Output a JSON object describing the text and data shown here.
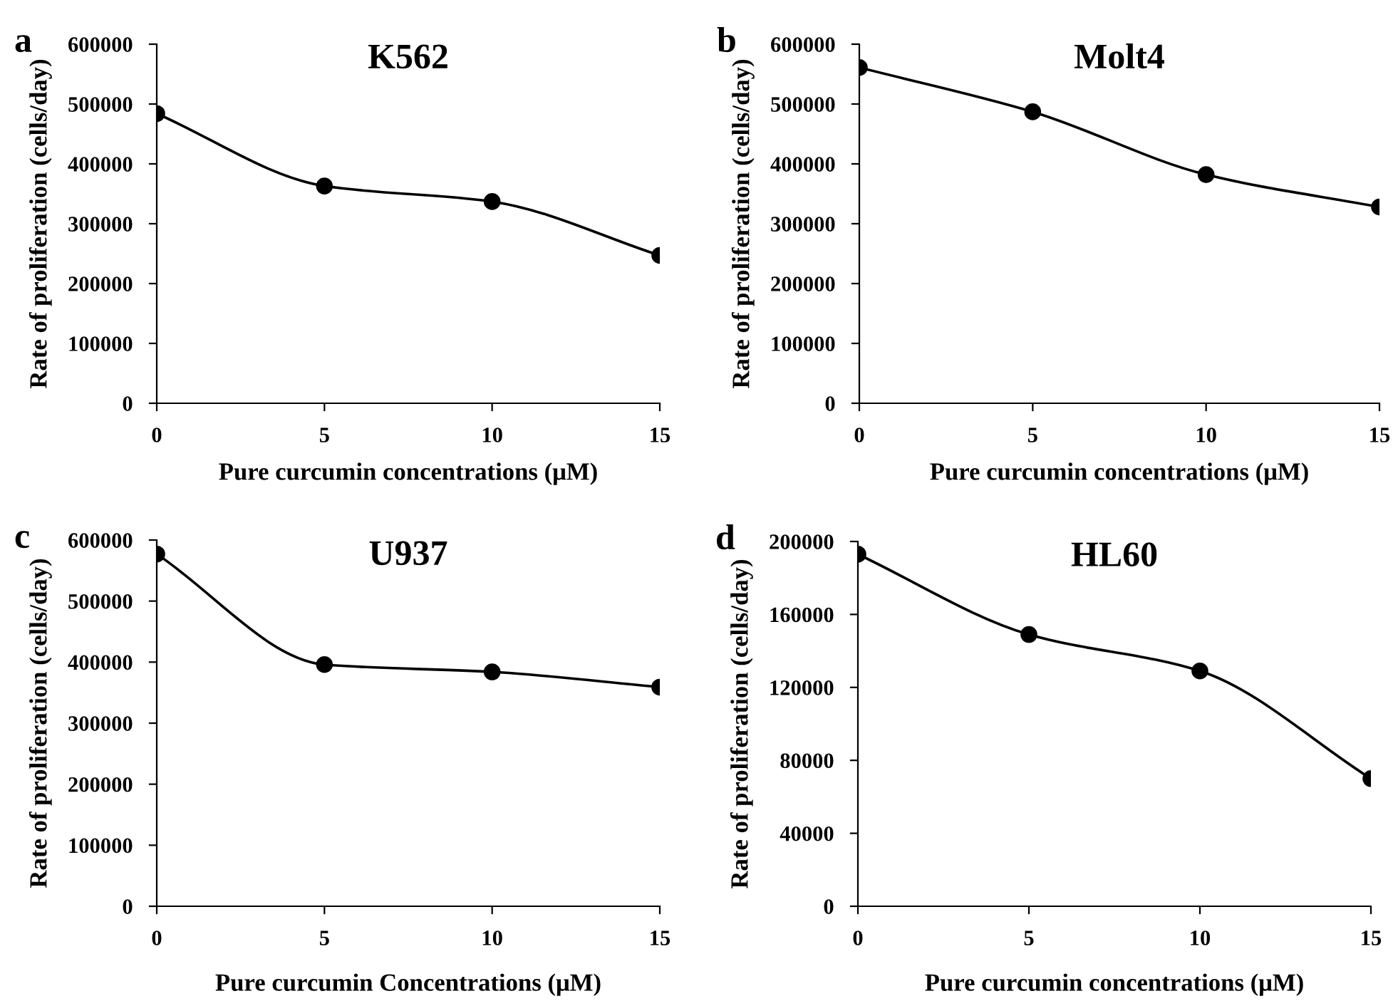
{
  "chart_data": [
    {
      "type": "line",
      "title": "K562",
      "xlabel": "Pure curcumin concentrations (μM)",
      "ylabel": "Rate of proliferation (cells/day)",
      "annotations": [
        "a"
      ],
      "x": [
        0,
        5,
        10,
        15
      ],
      "xlim": [
        0,
        15
      ],
      "xticks": [
        0,
        5,
        10,
        15
      ],
      "ylim": [
        0,
        600000
      ],
      "yticks": [
        0,
        100000,
        200000,
        300000,
        400000,
        500000,
        600000
      ],
      "marker": "circle",
      "grid": false,
      "legend": false,
      "series": [
        {
          "color": "#000000",
          "values": [
            484000,
            363000,
            337000,
            247000
          ]
        }
      ]
    },
    {
      "type": "line",
      "title": "Molt4",
      "xlabel": "Pure curcumin concentrations (μM)",
      "ylabel": "Rate of proliferation (cells/day)",
      "annotations": [
        "b"
      ],
      "x": [
        0,
        5,
        10,
        15
      ],
      "xlim": [
        0,
        15
      ],
      "xticks": [
        0,
        5,
        10,
        15
      ],
      "ylim": [
        0,
        600000
      ],
      "yticks": [
        0,
        100000,
        200000,
        300000,
        400000,
        500000,
        600000
      ],
      "marker": "circle",
      "grid": false,
      "legend": false,
      "series": [
        {
          "color": "#000000",
          "values": [
            561000,
            487000,
            382000,
            328000
          ]
        }
      ]
    },
    {
      "type": "line",
      "title": "U937",
      "xlabel": "Pure curcumin Concentrations (μM)",
      "ylabel": "Rate of proliferation (cells/day)",
      "annotations": [
        "c"
      ],
      "x": [
        0,
        5,
        10,
        15
      ],
      "xlim": [
        0,
        15
      ],
      "xticks": [
        0,
        5,
        10,
        15
      ],
      "ylim": [
        0,
        600000
      ],
      "yticks": [
        0,
        100000,
        200000,
        300000,
        400000,
        500000,
        600000
      ],
      "marker": "circle",
      "grid": false,
      "legend": false,
      "series": [
        {
          "color": "#000000",
          "values": [
            577000,
            396000,
            384000,
            359000
          ]
        }
      ]
    },
    {
      "type": "line",
      "title": "HL60",
      "xlabel": "Pure curcumin concentrations (μM)",
      "ylabel": "Rate of proliferation (cells/day)",
      "annotations": [
        "d"
      ],
      "x": [
        0,
        5,
        10,
        15
      ],
      "xlim": [
        0,
        15
      ],
      "xticks": [
        0,
        5,
        10,
        15
      ],
      "ylim": [
        0,
        200000
      ],
      "yticks": [
        0,
        40000,
        80000,
        120000,
        160000,
        200000
      ],
      "marker": "circle",
      "grid": false,
      "legend": false,
      "series": [
        {
          "color": "#000000",
          "values": [
            193000,
            149000,
            129000,
            70000
          ]
        }
      ]
    }
  ]
}
